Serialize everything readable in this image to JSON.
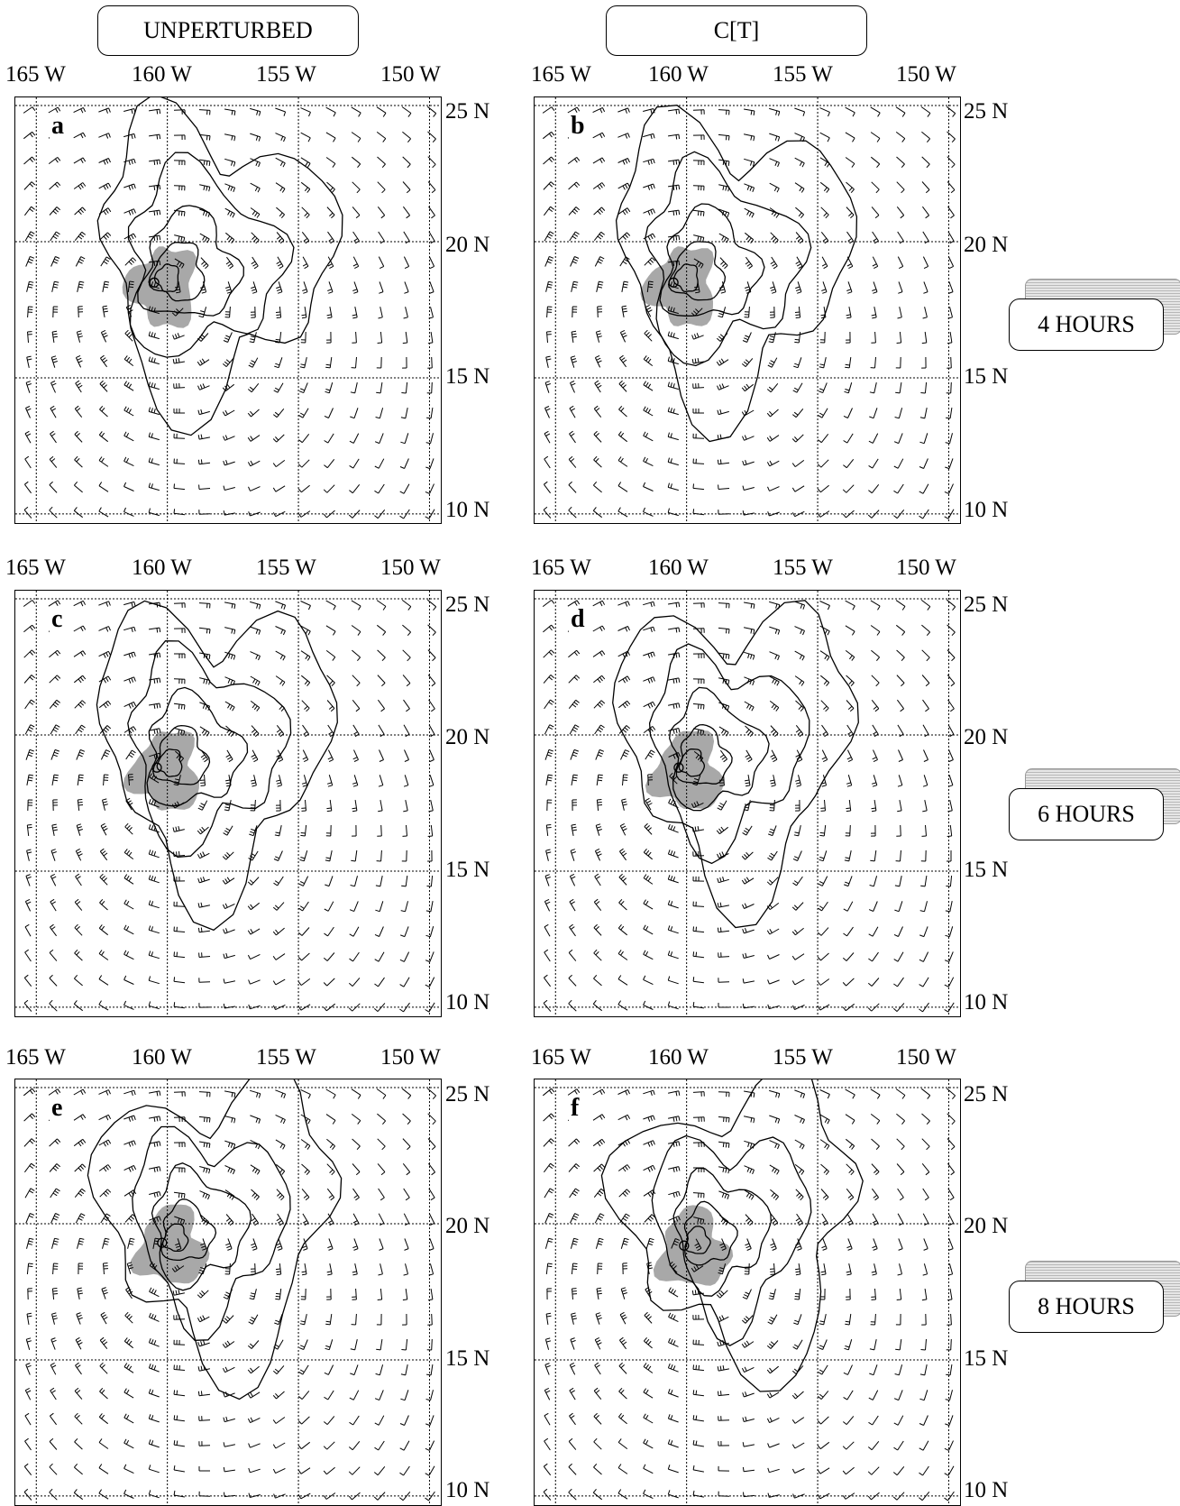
{
  "columns": [
    {
      "title": "UNPERTURBED"
    },
    {
      "title": "C[T]"
    }
  ],
  "times": [
    {
      "label": "4 HOURS"
    },
    {
      "label": "6 HOURS"
    },
    {
      "label": "8 HOURS"
    }
  ],
  "axes": {
    "lon_labels": [
      "165 W",
      "160 W",
      "155 W",
      "150 W"
    ],
    "lat_labels": [
      "25 N",
      "20 N",
      "15 N",
      "10 N"
    ]
  },
  "panels": [
    {
      "letter": "a",
      "column": "UNPERTURBED",
      "time": "4 HOURS",
      "center": {
        "lon": -160.5,
        "lat": 18.5
      }
    },
    {
      "letter": "b",
      "column": "C[T]",
      "time": "4 HOURS",
      "center": {
        "lon": -160.5,
        "lat": 18.5
      }
    },
    {
      "letter": "c",
      "column": "UNPERTURBED",
      "time": "6 HOURS",
      "center": {
        "lon": -160.4,
        "lat": 18.8
      }
    },
    {
      "letter": "d",
      "column": "C[T]",
      "time": "6 HOURS",
      "center": {
        "lon": -160.3,
        "lat": 18.8
      }
    },
    {
      "letter": "e",
      "column": "UNPERTURBED",
      "time": "8 HOURS",
      "center": {
        "lon": -160.2,
        "lat": 19.3
      }
    },
    {
      "letter": "f",
      "column": "C[T]",
      "time": "8 HOURS",
      "center": {
        "lon": -160.1,
        "lat": 19.2
      }
    }
  ],
  "map_extent": {
    "lon": [
      -165.8,
      -149.5
    ],
    "lat": [
      9.6,
      25.3
    ]
  },
  "colors": {
    "shading": "#a8a8a8",
    "lines": "#000000",
    "grid": "#000000"
  }
}
